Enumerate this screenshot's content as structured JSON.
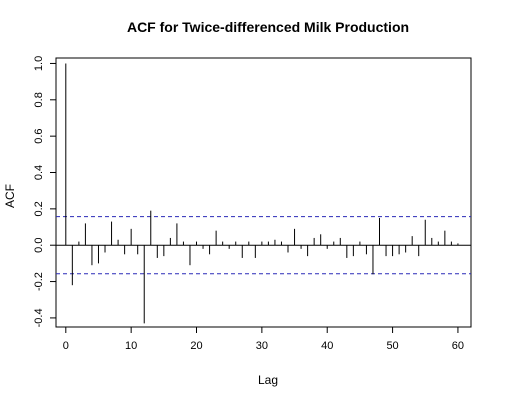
{
  "chart_data": {
    "type": "bar",
    "title": "ACF for Twice-differenced Milk Production",
    "xlabel": "Lag",
    "ylabel": "ACF",
    "xlim": [
      -1.5,
      62
    ],
    "ylim": [
      -0.45,
      1.03
    ],
    "xticks": [
      0,
      10,
      20,
      30,
      40,
      50,
      60
    ],
    "yticks": [
      -0.4,
      -0.2,
      0.0,
      0.2,
      0.4,
      0.6,
      0.8,
      1.0
    ],
    "ytick_labels": [
      "-0.4",
      "-0.2",
      "0.0",
      "0.2",
      "0.4",
      "0.6",
      "0.8",
      "1.0"
    ],
    "confidence_bounds": [
      0.157,
      -0.157
    ],
    "zero_line": 0,
    "lags": [
      0,
      1,
      2,
      3,
      4,
      5,
      6,
      7,
      8,
      9,
      10,
      11,
      12,
      13,
      14,
      15,
      16,
      17,
      18,
      19,
      20,
      21,
      22,
      23,
      24,
      25,
      26,
      27,
      28,
      29,
      30,
      31,
      32,
      33,
      34,
      35,
      36,
      37,
      38,
      39,
      40,
      41,
      42,
      43,
      44,
      45,
      46,
      47,
      48,
      49,
      50,
      51,
      52,
      53,
      54,
      55,
      56,
      57,
      58,
      59,
      60
    ],
    "values": [
      1.0,
      -0.22,
      0.02,
      0.12,
      -0.11,
      -0.1,
      -0.04,
      0.13,
      0.03,
      -0.05,
      0.09,
      -0.05,
      -0.43,
      0.19,
      -0.07,
      -0.06,
      0.04,
      0.12,
      0.02,
      -0.11,
      0.02,
      -0.02,
      -0.05,
      0.08,
      0.02,
      -0.02,
      0.02,
      -0.07,
      0.02,
      -0.07,
      0.02,
      0.02,
      0.03,
      0.02,
      -0.04,
      0.09,
      -0.02,
      -0.06,
      0.04,
      0.06,
      -0.02,
      0.02,
      0.04,
      -0.07,
      -0.06,
      0.02,
      -0.05,
      -0.16,
      0.15,
      -0.06,
      -0.06,
      -0.05,
      -0.04,
      0.05,
      -0.06,
      0.14,
      0.04,
      0.02,
      0.08,
      0.02,
      0.01
    ],
    "colors": {
      "bars": "#000000",
      "bounds": "#2a2ab8",
      "axis": "#000000"
    }
  }
}
